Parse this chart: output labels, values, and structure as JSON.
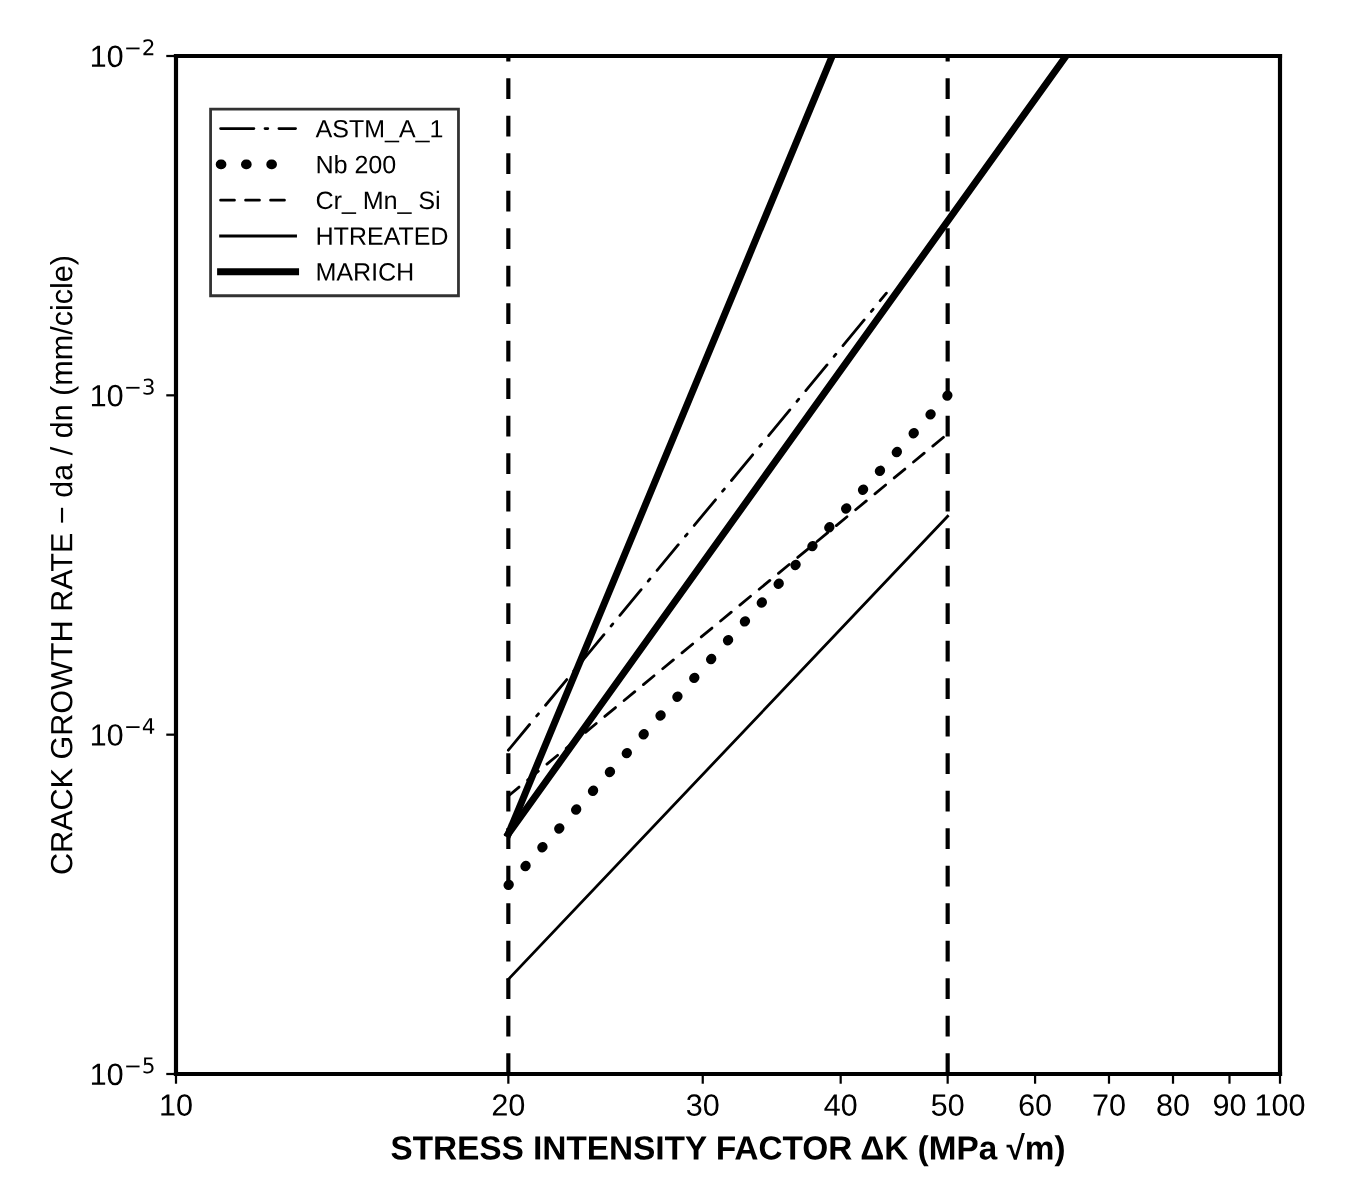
{
  "chart_data": {
    "type": "line",
    "log": "xy",
    "xlabel": "STRESS INTENSITY FACTOR ΔK (MPa √m)",
    "ylabel": "CRACK GROWTH RATE − da / dn (mm/cicle)",
    "xlim": [
      10,
      100
    ],
    "ylim": [
      1e-05,
      0.01
    ],
    "xticks": [
      10,
      20,
      30,
      40,
      50,
      60,
      70,
      80,
      90,
      100
    ],
    "yticks": [
      {
        "value": 1e-05,
        "label": "10$^{−5}$"
      },
      {
        "value": 0.0001,
        "label": "10$^{−4}$"
      },
      {
        "value": 0.001,
        "label": "10$^{−3}$"
      },
      {
        "value": 0.01,
        "label": "10$^{−2}$"
      }
    ],
    "grid": false,
    "legend": "top left",
    "ref_lines": [
      {
        "axis": "x",
        "value": 20,
        "line_style": "dashed"
      },
      {
        "axis": "x",
        "value": 50,
        "line_style": "dashed"
      }
    ],
    "series": [
      {
        "name": "ASTM_A_1",
        "color": "#000000",
        "line_style": "dashdot",
        "x": [
          20,
          44
        ],
        "values": [
          9e-05,
          0.002
        ]
      },
      {
        "name": "Nb 200",
        "color": "#000000",
        "line_style": "dotted",
        "x": [
          20,
          50
        ],
        "values": [
          3.6e-05,
          0.001
        ]
      },
      {
        "name": "Cr_ Mn_ Si",
        "color": "#000000",
        "line_style": "dashed",
        "x": [
          20,
          50
        ],
        "values": [
          6.6e-05,
          0.00077
        ]
      },
      {
        "name": "HTREATED",
        "color": "#000000",
        "line_style": "solid",
        "x": [
          20,
          50
        ],
        "values": [
          1.9e-05,
          0.00044
        ]
      },
      {
        "name": "MARICH",
        "color": "#000000",
        "line_style": "solid",
        "x": [
          20,
          39.3
        ],
        "values": [
          5.1e-05,
          0.01
        ]
      },
      {
        "color": "#000000",
        "line_style": "solid",
        "x": [
          20,
          64
        ],
        "values": [
          5.1e-05,
          0.01
        ]
      }
    ]
  }
}
